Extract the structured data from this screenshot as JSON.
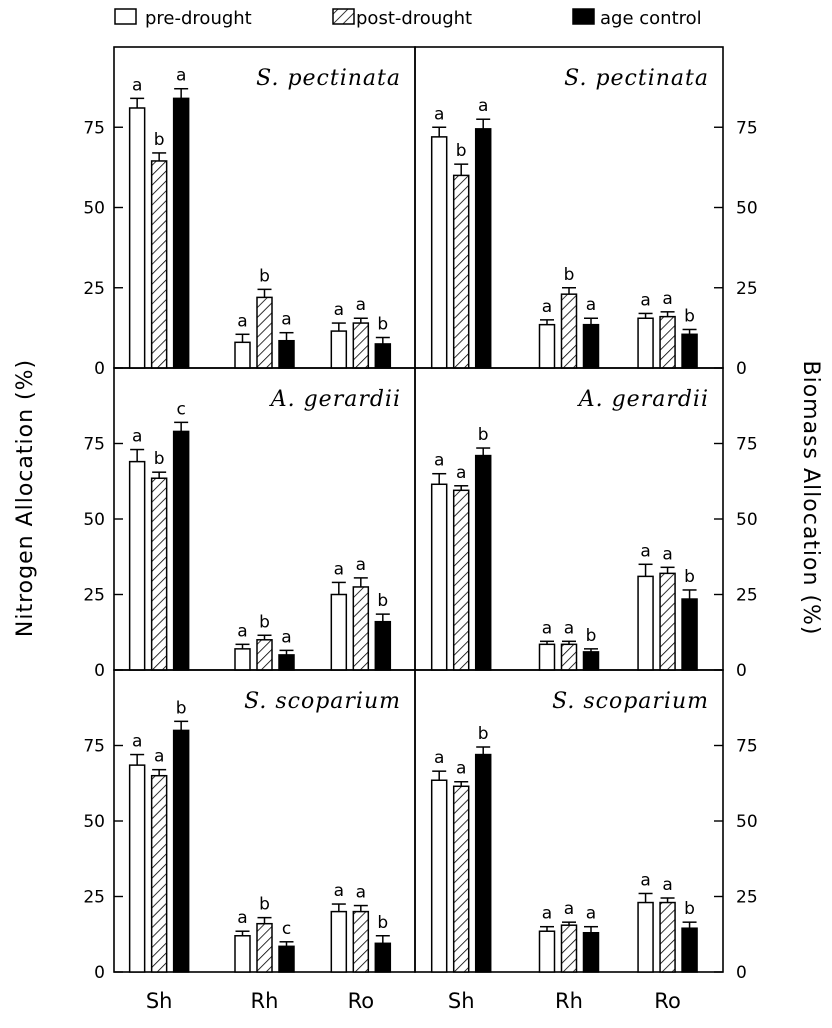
{
  "legend": [
    {
      "name": "pre-drought",
      "style": "open"
    },
    {
      "name": "post-drought",
      "style": "hatched"
    },
    {
      "name": "age control",
      "style": "solid"
    }
  ],
  "chart_data": [
    {
      "type": "bar",
      "panel": "left-top",
      "ylabel": "Nitrogen Allocation (%)",
      "species": "S. pectinata",
      "categories": [
        "Sh",
        "Rh",
        "Ro"
      ],
      "ylim": [
        0,
        100
      ],
      "yticks": [
        0,
        25,
        50,
        75
      ],
      "series": [
        {
          "name": "pre-drought",
          "values": [
            81,
            8,
            11.5
          ],
          "errors": [
            3,
            2.5,
            2.5
          ],
          "letters": [
            "a",
            "a",
            "a"
          ]
        },
        {
          "name": "post-drought",
          "values": [
            64.5,
            22,
            14
          ],
          "errors": [
            2.5,
            2.5,
            1.5
          ],
          "letters": [
            "b",
            "b",
            "a"
          ]
        },
        {
          "name": "age control",
          "values": [
            84,
            8.5,
            7.5
          ],
          "errors": [
            3,
            2.5,
            2
          ],
          "letters": [
            "a",
            "a",
            "b"
          ]
        }
      ]
    },
    {
      "type": "bar",
      "panel": "left-middle",
      "ylabel": "Nitrogen Allocation (%)",
      "species": "A. gerardii",
      "categories": [
        "Sh",
        "Rh",
        "Ro"
      ],
      "ylim": [
        0,
        100
      ],
      "yticks": [
        0,
        25,
        50,
        75
      ],
      "series": [
        {
          "name": "pre-drought",
          "values": [
            69,
            7,
            25
          ],
          "errors": [
            4,
            1.5,
            4
          ],
          "letters": [
            "a",
            "a",
            "a"
          ]
        },
        {
          "name": "post-drought",
          "values": [
            63.5,
            10,
            27.5
          ],
          "errors": [
            2,
            1.5,
            3
          ],
          "letters": [
            "b",
            "b",
            "a"
          ]
        },
        {
          "name": "age control",
          "values": [
            79,
            5,
            16
          ],
          "errors": [
            3,
            1.5,
            2.5
          ],
          "letters": [
            "c",
            "a",
            "b"
          ]
        }
      ]
    },
    {
      "type": "bar",
      "panel": "left-bottom",
      "ylabel": "Nitrogen Allocation (%)",
      "species": "S. scoparium",
      "categories": [
        "Sh",
        "Rh",
        "Ro"
      ],
      "ylim": [
        0,
        100
      ],
      "yticks": [
        0,
        25,
        50,
        75
      ],
      "series": [
        {
          "name": "pre-drought",
          "values": [
            68.5,
            12,
            20
          ],
          "errors": [
            3.5,
            1.5,
            2.5
          ],
          "letters": [
            "a",
            "a",
            "a"
          ]
        },
        {
          "name": "post-drought",
          "values": [
            65,
            16,
            20
          ],
          "errors": [
            2,
            2,
            2
          ],
          "letters": [
            "a",
            "b",
            "a"
          ]
        },
        {
          "name": "age control",
          "values": [
            80,
            8.5,
            9.5
          ],
          "errors": [
            3,
            1.5,
            2.5
          ],
          "letters": [
            "b",
            "c",
            "b"
          ]
        }
      ]
    },
    {
      "type": "bar",
      "panel": "right-top",
      "ylabel": "Biomass Allocation (%)",
      "species": "S. pectinata",
      "categories": [
        "Sh",
        "Rh",
        "Ro"
      ],
      "ylim": [
        0,
        100
      ],
      "yticks": [
        0,
        25,
        50,
        75
      ],
      "series": [
        {
          "name": "pre-drought",
          "values": [
            72,
            13.5,
            15.5
          ],
          "errors": [
            3,
            1.5,
            1.5
          ],
          "letters": [
            "a",
            "a",
            "a"
          ]
        },
        {
          "name": "post-drought",
          "values": [
            60,
            23,
            16
          ],
          "errors": [
            3.5,
            2,
            1.5
          ],
          "letters": [
            "b",
            "b",
            "a"
          ]
        },
        {
          "name": "age control",
          "values": [
            74.5,
            13.5,
            10.5
          ],
          "errors": [
            3,
            2,
            1.5
          ],
          "letters": [
            "a",
            "a",
            "b"
          ]
        }
      ]
    },
    {
      "type": "bar",
      "panel": "right-middle",
      "ylabel": "Biomass Allocation (%)",
      "species": "A. gerardii",
      "categories": [
        "Sh",
        "Rh",
        "Ro"
      ],
      "ylim": [
        0,
        100
      ],
      "yticks": [
        0,
        25,
        50,
        75
      ],
      "series": [
        {
          "name": "pre-drought",
          "values": [
            61.5,
            8.5,
            31
          ],
          "errors": [
            3.5,
            1,
            4
          ],
          "letters": [
            "a",
            "a",
            "a"
          ]
        },
        {
          "name": "post-drought",
          "values": [
            59.5,
            8.5,
            32
          ],
          "errors": [
            1.5,
            1,
            2
          ],
          "letters": [
            "a",
            "a",
            "a"
          ]
        },
        {
          "name": "age control",
          "values": [
            71,
            6,
            23.5
          ],
          "errors": [
            2.5,
            1,
            3
          ],
          "letters": [
            "b",
            "b",
            "b"
          ]
        }
      ]
    },
    {
      "type": "bar",
      "panel": "right-bottom",
      "ylabel": "Biomass Allocation (%)",
      "species": "S. scoparium",
      "categories": [
        "Sh",
        "Rh",
        "Ro"
      ],
      "ylim": [
        0,
        100
      ],
      "yticks": [
        0,
        25,
        50,
        75
      ],
      "series": [
        {
          "name": "pre-drought",
          "values": [
            63.5,
            13.5,
            23
          ],
          "errors": [
            3,
            1.5,
            3
          ],
          "letters": [
            "a",
            "a",
            "a"
          ]
        },
        {
          "name": "post-drought",
          "values": [
            61.5,
            15.5,
            23
          ],
          "errors": [
            1.5,
            1,
            1.5
          ],
          "letters": [
            "a",
            "a",
            "a"
          ]
        },
        {
          "name": "age control",
          "values": [
            72,
            13,
            14.5
          ],
          "errors": [
            2.5,
            2,
            2
          ],
          "letters": [
            "b",
            "a",
            "b"
          ]
        }
      ]
    }
  ]
}
